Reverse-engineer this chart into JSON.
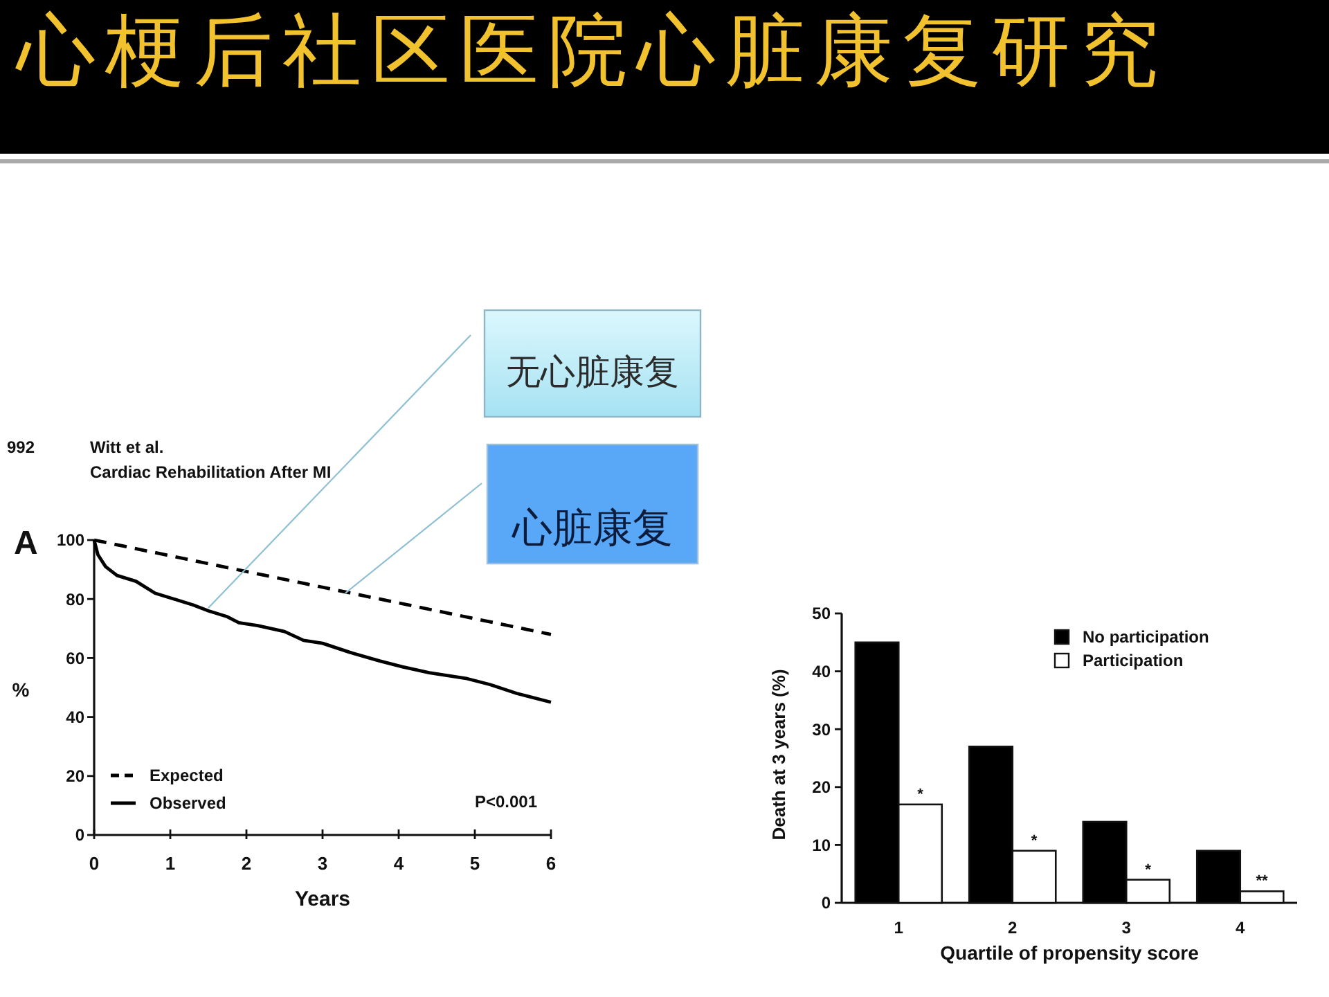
{
  "chart_data": [
    {
      "type": "line",
      "title": "心梗后社区医院心脏康复研究",
      "xlabel": "Years",
      "ylabel": "%",
      "xlim": [
        0,
        6
      ],
      "ylim": [
        0,
        100
      ],
      "xticks": [
        0,
        1,
        2,
        3,
        4,
        5,
        6
      ],
      "yticks": [
        0,
        20,
        40,
        60,
        80,
        100
      ],
      "legend": "bottom left",
      "series": [
        {
          "name": "Expected",
          "color": "#000000",
          "line_style": "dashed",
          "x": [
            0,
            6
          ],
          "values": [
            100,
            68
          ]
        },
        {
          "name": "Observed",
          "color": "#000000",
          "line_style": "solid",
          "x": [
            0,
            0.05,
            0.15,
            0.3,
            0.55,
            0.8,
            1.05,
            1.3,
            1.5,
            1.75,
            1.9,
            2.15,
            2.5,
            2.75,
            3.0,
            3.35,
            3.75,
            4.05,
            4.4,
            4.65,
            4.9,
            5.2,
            5.55,
            6
          ],
          "values": [
            100,
            95,
            91,
            88,
            86,
            82,
            80,
            78,
            76,
            74,
            72,
            71,
            69,
            66,
            65,
            62,
            59,
            57,
            55,
            54,
            53,
            51,
            48,
            45
          ]
        }
      ],
      "annotations": [
        "992",
        "Witt et al.",
        "Cardiac Rehabilitation After MI",
        "A",
        "P<0.001",
        {
          "text": "无心脏康复",
          "x": 1.5,
          "y": 77
        },
        {
          "text": "心脏康复",
          "x": 3.3,
          "y": 82
        }
      ]
    },
    {
      "type": "bar",
      "xlabel": "Quartile of propensity score",
      "ylabel": "Death at 3 years (%)",
      "categories": [
        "1",
        "2",
        "3",
        "4"
      ],
      "ylim": [
        0,
        50
      ],
      "yticks": [
        0,
        10,
        20,
        30,
        40,
        50
      ],
      "legend": "top right",
      "series": [
        {
          "name": "No participation",
          "color": "#000000",
          "values": [
            45,
            27,
            14,
            9
          ]
        },
        {
          "name": "Participation",
          "color": "#ffffff",
          "values": [
            17,
            9,
            4,
            2
          ],
          "value_labels": [
            "*",
            "*",
            "*",
            "**"
          ]
        }
      ]
    }
  ]
}
